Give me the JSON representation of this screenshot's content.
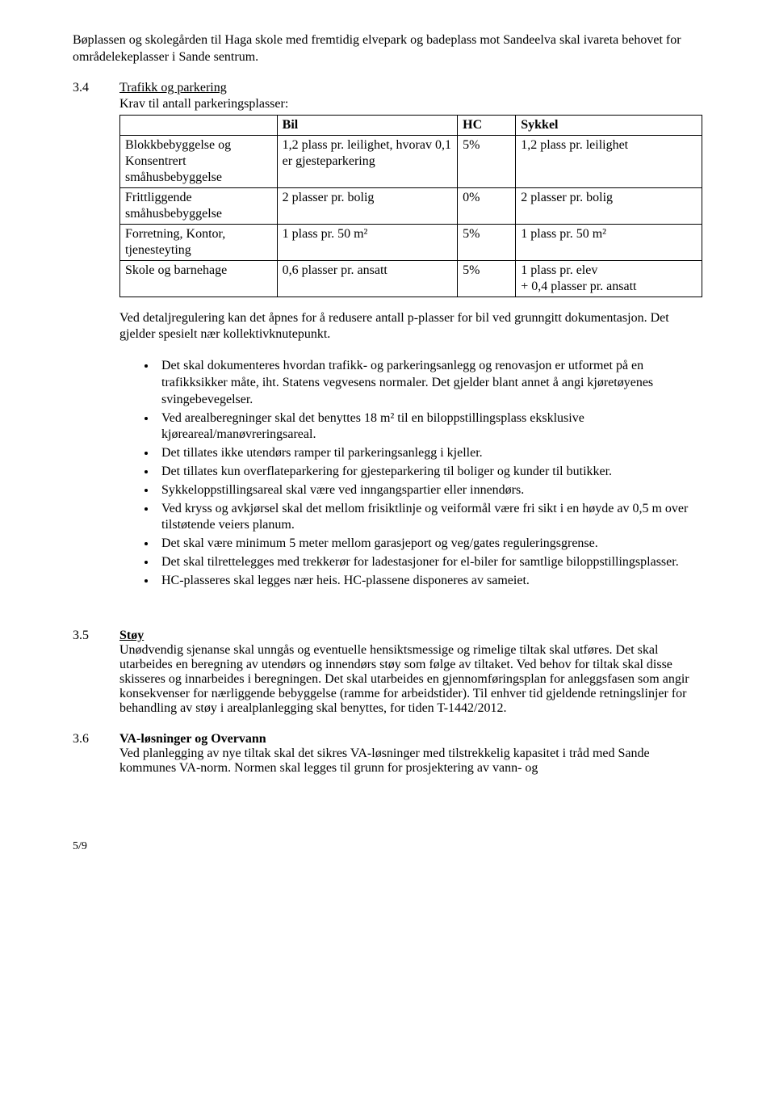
{
  "intro_para": "Bøplassen og skolegården til Haga skole med fremtidig elvepark og badeplass mot Sandeelva skal ivareta behovet for områdelekeplasser i Sande sentrum.",
  "sec34": {
    "num": "3.4",
    "title": "Trafikk og parkering",
    "subtitle": "Krav til antall parkeringsplasser:"
  },
  "table": {
    "headers": [
      "",
      "Bil",
      "HC",
      "Sykkel"
    ],
    "rows": [
      [
        "Blokkbebyggelse og Konsentrert småhusbebyggelse",
        "1,2 plass pr. leilighet, hvorav 0,1 er gjesteparkering",
        "5%",
        "1,2 plass pr. leilighet"
      ],
      [
        "Frittliggende småhusbebyggelse",
        "2 plasser pr. bolig",
        "0%",
        "2 plasser pr. bolig"
      ],
      [
        "Forretning, Kontor, tjenesteyting",
        "1 plass pr. 50 m²",
        "5%",
        "1 plass pr. 50 m²"
      ],
      [
        "Skole og barnehage",
        "0,6 plasser pr. ansatt",
        "5%",
        "1 plass pr. elev\n+ 0,4 plasser pr. ansatt"
      ]
    ],
    "col_widths": [
      "27%",
      "31%",
      "10%",
      "32%"
    ]
  },
  "detail_para": "Ved detaljregulering kan det åpnes for å redusere antall p-plasser for bil ved grunngitt dokumentasjon. Det gjelder spesielt nær kollektivknutepunkt.",
  "bullets": [
    "Det skal dokumenteres hvordan trafikk- og parkeringsanlegg og renovasjon er utformet på en trafikksikker måte, iht. Statens vegvesens normaler. Det gjelder blant annet å angi kjøretøyenes svingebevegelser.",
    "Ved arealberegninger skal det benyttes 18 m² til en biloppstillingsplass eksklusive kjøreareal/manøvreringsareal.",
    "Det tillates ikke utendørs ramper til parkeringsanlegg i kjeller.",
    "Det tillates kun overflateparkering for gjesteparkering til boliger og kunder til butikker.",
    "Sykkeloppstillingsareal skal være ved inngangspartier eller innendørs.",
    "Ved kryss og avkjørsel skal det mellom frisiktlinje og veiformål være fri sikt i en høyde av 0,5 m over tilstøtende veiers planum.",
    "Det skal være minimum 5 meter mellom garasjeport og veg/gates reguleringsgrense.",
    "Det skal tilrettelegges med trekkerør for ladestasjoner for el-biler for samtlige biloppstillingsplasser.",
    "HC-plasseres skal legges nær heis. HC-plassene disponeres av sameiet."
  ],
  "sec35": {
    "num": "3.5",
    "title": "Støy",
    "body": "Unødvendig sjenanse skal unngås og eventuelle hensiktsmessige og rimelige tiltak skal utføres. Det skal utarbeides en beregning av utendørs og innendørs støy som følge av tiltaket. Ved behov for tiltak skal disse skisseres og innarbeides i beregningen. Det skal utarbeides en gjennomføringsplan for anleggsfasen som angir konsekvenser for nærliggende bebyggelse (ramme for arbeidstider). Til enhver tid gjeldende retningslinjer for behandling av støy i arealplanlegging skal benyttes, for tiden T-1442/2012."
  },
  "sec36": {
    "num": "3.6",
    "title": "VA-løsninger og Overvann",
    "body": "Ved planlegging av nye tiltak skal det sikres VA-løsninger med tilstrekkelig kapasitet i tråd med Sande kommunes VA-norm. Normen skal legges til grunn for prosjektering av vann- og"
  },
  "footer": "5/9"
}
